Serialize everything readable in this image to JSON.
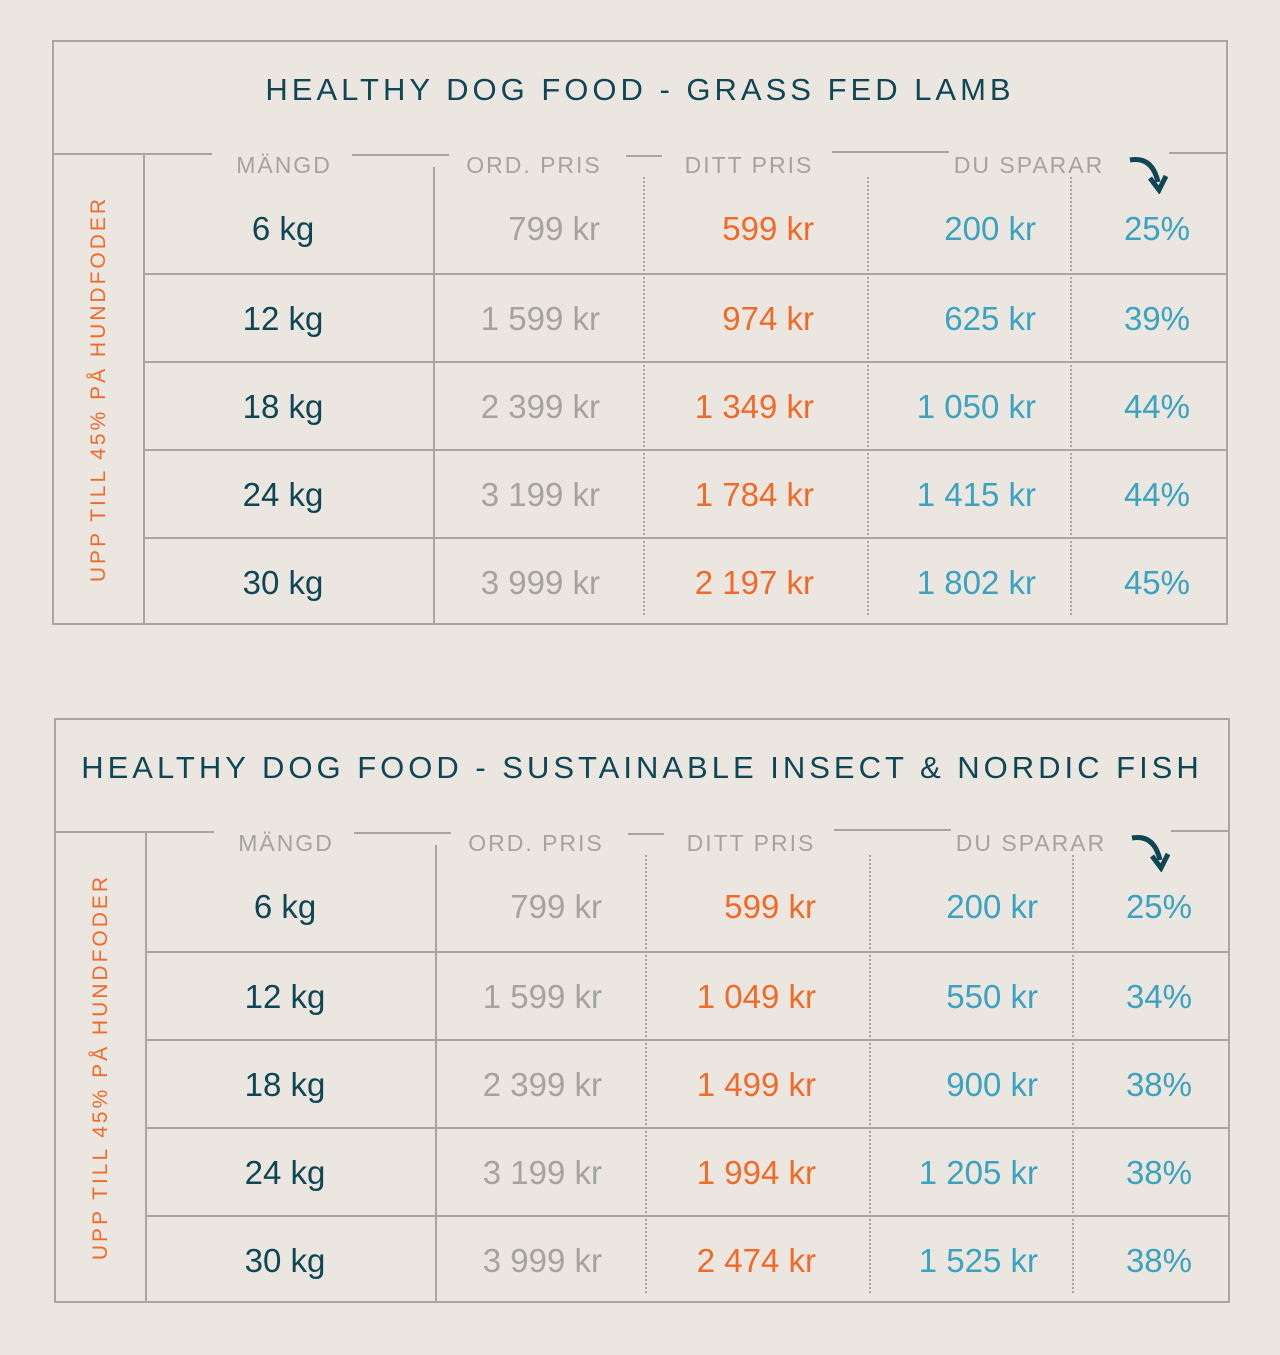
{
  "tables": [
    {
      "title": "HEALTHY DOG FOOD - GRASS FED LAMB",
      "side_label": "UPP TILL 45% PÅ HUNDFODER",
      "headers": [
        "MÄNGD",
        "ORD. PRIS",
        "DITT PRIS",
        "DU SPARAR"
      ],
      "rows": [
        {
          "qty": "6 kg",
          "ord": "799 kr",
          "ditt": "599 kr",
          "save": "200 kr",
          "pct": "25%"
        },
        {
          "qty": "12 kg",
          "ord": "1 599 kr",
          "ditt": "974 kr",
          "save": "625 kr",
          "pct": "39%"
        },
        {
          "qty": "18 kg",
          "ord": "2 399 kr",
          "ditt": "1 349 kr",
          "save": "1 050 kr",
          "pct": "44%"
        },
        {
          "qty": "24 kg",
          "ord": "3 199 kr",
          "ditt": "1 784 kr",
          "save": "1 415 kr",
          "pct": "44%"
        },
        {
          "qty": "30 kg",
          "ord": "3 999 kr",
          "ditt": "2 197 kr",
          "save": "1 802 kr",
          "pct": "45%"
        }
      ]
    },
    {
      "title": "HEALTHY DOG FOOD - SUSTAINABLE INSECT & NORDIC FISH",
      "side_label": "UPP TILL 45% PÅ HUNDFODER",
      "headers": [
        "MÄNGD",
        "ORD. PRIS",
        "DITT PRIS",
        "DU SPARAR"
      ],
      "rows": [
        {
          "qty": "6 kg",
          "ord": "799 kr",
          "ditt": "599 kr",
          "save": "200 kr",
          "pct": "25%"
        },
        {
          "qty": "12 kg",
          "ord": "1 599 kr",
          "ditt": "1 049 kr",
          "save": "550 kr",
          "pct": "34%"
        },
        {
          "qty": "18 kg",
          "ord": "2 399 kr",
          "ditt": "1 499 kr",
          "save": "900 kr",
          "pct": "38%"
        },
        {
          "qty": "24 kg",
          "ord": "3 199 kr",
          "ditt": "1 994 kr",
          "save": "1 205 kr",
          "pct": "38%"
        },
        {
          "qty": "30 kg",
          "ord": "3 999 kr",
          "ditt": "2 474 kr",
          "save": "1 525 kr",
          "pct": "38%"
        }
      ]
    }
  ],
  "colors": {
    "navy": "#0f4656",
    "orange": "#f26a2a",
    "teal": "#3ba3c0",
    "grey": "#a5a3a0",
    "background": "#ebe6df"
  }
}
